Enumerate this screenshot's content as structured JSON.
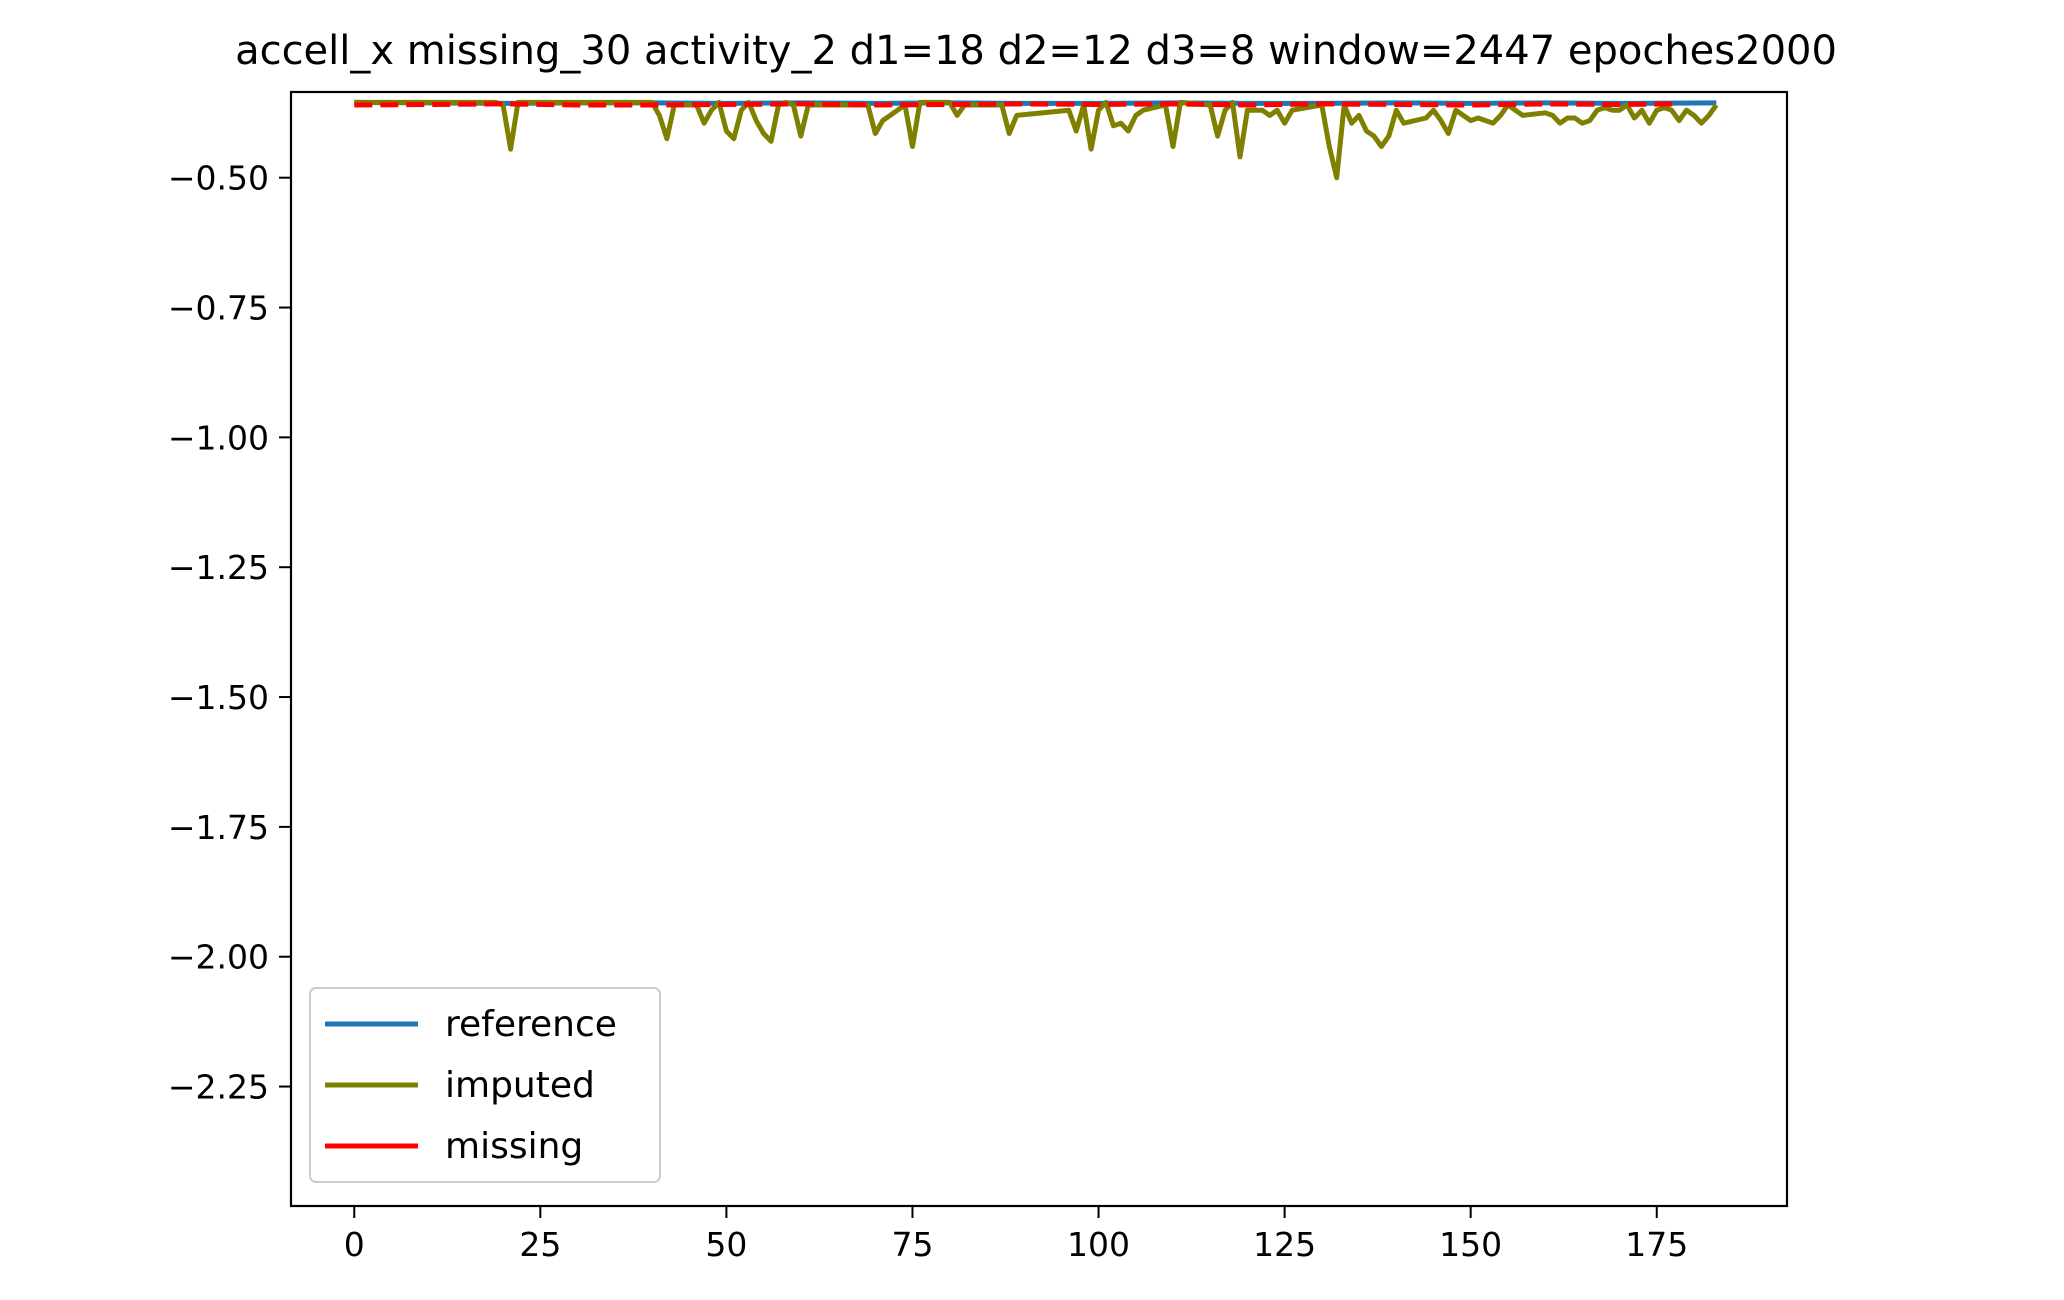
{
  "chart_data": {
    "type": "line",
    "title": "accell_x missing_30 activity_2 d1=18 d2=12 d3=8 window=2447 epoches2000",
    "xlabel": "",
    "ylabel": "",
    "xlim": [
      -8.5,
      192.5
    ],
    "ylim": [
      -2.48,
      -0.335
    ],
    "x_ticks": [
      0,
      25,
      50,
      75,
      100,
      125,
      150,
      175
    ],
    "y_ticks": [
      -0.5,
      -0.75,
      -1.0,
      -1.25,
      -1.5,
      -1.75,
      -2.0,
      -2.25
    ],
    "grid": false,
    "legend_position": "lower-left",
    "series": [
      {
        "name": "reference",
        "color": "#1f77b4",
        "style": "solid",
        "x": [
          0,
          10,
          20,
          30,
          40,
          50,
          60,
          70,
          80,
          90,
          100,
          110,
          120,
          130,
          140,
          150,
          160,
          170,
          183
        ],
        "y": [
          -0.355,
          -0.356,
          -0.357,
          -0.356,
          -0.356,
          -0.357,
          -0.356,
          -0.357,
          -0.356,
          -0.357,
          -0.357,
          -0.356,
          -0.357,
          -0.357,
          -0.356,
          -0.357,
          -0.356,
          -0.357,
          -0.356
        ]
      },
      {
        "name": "imputed",
        "color": "#808000",
        "style": "solid",
        "x": [
          0,
          19,
          20,
          21,
          22,
          40,
          41,
          42,
          43,
          46,
          47,
          48,
          49,
          50,
          51,
          52,
          53,
          54,
          55,
          56,
          57,
          58,
          59,
          60,
          61,
          69,
          70,
          71,
          74,
          75,
          76,
          80,
          81,
          82,
          87,
          88,
          89,
          96,
          97,
          98,
          99,
          100,
          101,
          102,
          103,
          104,
          105,
          106,
          109,
          110,
          111,
          115,
          116,
          117,
          118,
          119,
          120,
          122,
          123,
          124,
          125,
          126,
          130,
          131,
          132,
          133,
          134,
          135,
          136,
          137,
          138,
          139,
          140,
          141,
          144,
          145,
          146,
          147,
          148,
          150,
          151,
          152,
          153,
          154,
          155,
          156,
          157,
          160,
          161,
          162,
          163,
          164,
          165,
          166,
          167,
          168,
          169,
          170,
          171,
          172,
          173,
          174,
          175,
          176,
          177,
          178,
          179,
          180,
          181,
          182,
          183
        ],
        "y": [
          -0.355,
          -0.355,
          -0.36,
          -0.445,
          -0.355,
          -0.355,
          -0.38,
          -0.425,
          -0.36,
          -0.36,
          -0.395,
          -0.37,
          -0.355,
          -0.41,
          -0.425,
          -0.37,
          -0.355,
          -0.39,
          -0.415,
          -0.43,
          -0.36,
          -0.355,
          -0.36,
          -0.42,
          -0.36,
          -0.36,
          -0.415,
          -0.39,
          -0.36,
          -0.44,
          -0.355,
          -0.355,
          -0.38,
          -0.36,
          -0.36,
          -0.415,
          -0.38,
          -0.37,
          -0.41,
          -0.36,
          -0.445,
          -0.37,
          -0.355,
          -0.4,
          -0.395,
          -0.41,
          -0.38,
          -0.37,
          -0.36,
          -0.44,
          -0.355,
          -0.36,
          -0.42,
          -0.37,
          -0.355,
          -0.46,
          -0.37,
          -0.37,
          -0.38,
          -0.37,
          -0.395,
          -0.37,
          -0.36,
          -0.44,
          -0.5,
          -0.36,
          -0.395,
          -0.38,
          -0.41,
          -0.42,
          -0.44,
          -0.42,
          -0.37,
          -0.395,
          -0.385,
          -0.37,
          -0.39,
          -0.415,
          -0.37,
          -0.39,
          -0.385,
          -0.39,
          -0.395,
          -0.38,
          -0.36,
          -0.37,
          -0.38,
          -0.375,
          -0.38,
          -0.395,
          -0.385,
          -0.385,
          -0.395,
          -0.39,
          -0.37,
          -0.365,
          -0.37,
          -0.37,
          -0.36,
          -0.385,
          -0.37,
          -0.395,
          -0.37,
          -0.365,
          -0.37,
          -0.39,
          -0.37,
          -0.38,
          -0.395,
          -0.38,
          -0.36
        ]
      },
      {
        "name": "missing",
        "color": "#ff0000",
        "style": "dashed",
        "x": [
          0,
          10,
          20,
          30,
          40,
          50,
          60,
          70,
          80,
          90,
          100,
          110,
          120,
          130,
          140,
          150,
          160,
          170,
          178
        ],
        "y": [
          -0.36,
          -0.359,
          -0.358,
          -0.36,
          -0.36,
          -0.359,
          -0.358,
          -0.36,
          -0.359,
          -0.358,
          -0.359,
          -0.358,
          -0.36,
          -0.358,
          -0.359,
          -0.36,
          -0.358,
          -0.359,
          -0.358
        ]
      }
    ]
  }
}
